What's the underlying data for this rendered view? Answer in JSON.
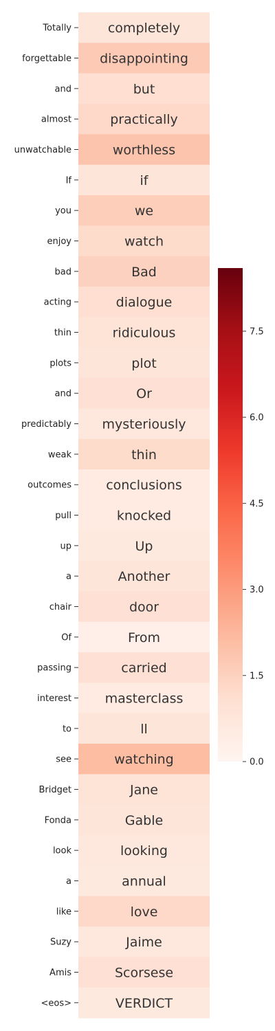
{
  "chart_data": {
    "type": "heatmap",
    "rows": [
      "Totally",
      "forgettable",
      "and",
      "almost",
      "unwatchable",
      "If",
      "you",
      "enjoy",
      "bad",
      "acting",
      "thin",
      "plots",
      "and",
      "predictably",
      "weak",
      "outcomes",
      "pull",
      "up",
      "a",
      "chair",
      "Of",
      "passing",
      "interest",
      "to",
      "see",
      "Bridget",
      "Fonda",
      "look",
      "a",
      "like",
      "Suzy",
      "Amis",
      "<eos>"
    ],
    "cells": [
      "completely",
      "disappointing",
      "but",
      "practically",
      "worthless",
      "if",
      "we",
      "watch",
      "Bad",
      "dialogue",
      "ridiculous",
      "plot",
      "Or",
      "mysteriously",
      "thin",
      "conclusions",
      "knocked",
      "Up",
      "Another",
      "door",
      "From",
      "carried",
      "masterclass",
      "ll",
      "watching",
      "Jane",
      "Gable",
      "looking",
      "annual",
      "love",
      "Jaime",
      "Scorsese",
      "VERDICT"
    ],
    "values": [
      0.8,
      1.7,
      1.1,
      1.3,
      1.9,
      0.8,
      1.6,
      1.2,
      1.5,
      1.1,
      0.9,
      0.8,
      1.0,
      0.7,
      1.2,
      0.5,
      0.5,
      0.6,
      0.8,
      1.0,
      0.3,
      1.0,
      0.5,
      0.8,
      2.1,
      0.9,
      0.8,
      0.7,
      0.6,
      1.3,
      0.7,
      1.0,
      0.6
    ],
    "colorbar": {
      "min": 0,
      "max": 8.6,
      "ticks": [
        "0.0",
        "1.5",
        "3.0",
        "4.5",
        "6.0",
        "7.5"
      ],
      "colormap": "Reds"
    }
  }
}
